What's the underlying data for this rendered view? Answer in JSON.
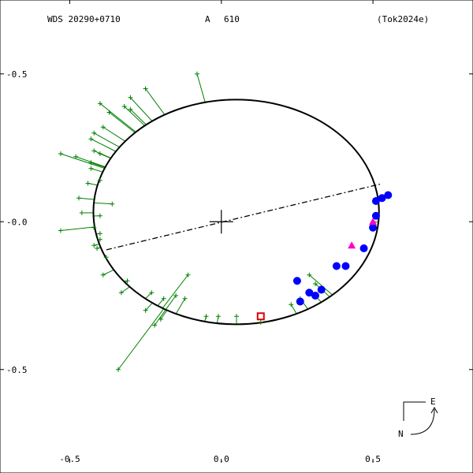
{
  "header": {
    "left": "WDS 20290+0710",
    "center_a": "A",
    "center_b": "610",
    "right": "(Tok2024e)"
  },
  "compass": {
    "east_label": "E",
    "north_label": "N"
  },
  "colors": {
    "orbit": "#000000",
    "residual": "#008000",
    "observation_blue": "#0000ff",
    "observation_magenta": "#ff00cc",
    "observation_red": "#dd0000"
  },
  "chart_data": {
    "type": "scatter",
    "title": "",
    "xlabel": "",
    "ylabel": "",
    "xlim": [
      -0.73,
      0.83
    ],
    "ylim": [
      0.85,
      -0.75
    ],
    "x_ticks": [
      {
        "value": -0.5,
        "label": "-0.5"
      },
      {
        "value": 0.0,
        "label": "0.0"
      },
      {
        "value": 0.5,
        "label": "0.5"
      }
    ],
    "y_ticks": [
      {
        "value": -0.5,
        "label": "-0.5"
      },
      {
        "value": 0.0,
        "label": "-0.0"
      },
      {
        "value": 0.5,
        "label": "-0.5"
      }
    ],
    "grid": false,
    "orbit_ellipse": {
      "cx": 0.049,
      "cy": -0.033,
      "rx": 0.471,
      "ry": 0.38,
      "rotation_deg": 0
    },
    "line_of_nodes": [
      [
        -0.379,
        0.095
      ],
      [
        0.523,
        -0.127
      ]
    ],
    "primary": [
      0.0,
      0.0
    ],
    "series": [
      {
        "marker": "plus",
        "color": "#008000",
        "points": [
          [
            -0.08,
            -0.5
          ],
          [
            -0.25,
            -0.45
          ],
          [
            -0.3,
            -0.42
          ],
          [
            -0.3,
            -0.38
          ],
          [
            -0.32,
            -0.39
          ],
          [
            -0.4,
            -0.4
          ],
          [
            -0.37,
            -0.37
          ],
          [
            -0.39,
            -0.32
          ],
          [
            -0.42,
            -0.3
          ],
          [
            -0.43,
            -0.28
          ],
          [
            -0.42,
            -0.24
          ],
          [
            -0.4,
            -0.23
          ],
          [
            -0.53,
            -0.23
          ],
          [
            -0.48,
            -0.22
          ],
          [
            -0.43,
            -0.2
          ],
          [
            -0.43,
            -0.18
          ],
          [
            -0.4,
            -0.14
          ],
          [
            -0.44,
            -0.13
          ],
          [
            -0.47,
            -0.08
          ],
          [
            -0.36,
            -0.06
          ],
          [
            -0.46,
            -0.03
          ],
          [
            -0.53,
            0.03
          ],
          [
            -0.4,
            -0.02
          ],
          [
            -0.42,
            0.02
          ],
          [
            -0.4,
            0.04
          ],
          [
            -0.4,
            0.06
          ],
          [
            -0.42,
            0.08
          ],
          [
            -0.38,
            0.12
          ],
          [
            -0.41,
            0.09
          ],
          [
            -0.39,
            0.18
          ],
          [
            -0.33,
            0.24
          ],
          [
            -0.31,
            0.2
          ],
          [
            -0.34,
            0.5
          ],
          [
            -0.23,
            0.24
          ],
          [
            -0.25,
            0.3
          ],
          [
            -0.22,
            0.35
          ],
          [
            -0.2,
            0.33
          ],
          [
            -0.19,
            0.26
          ],
          [
            -0.15,
            0.25
          ],
          [
            -0.12,
            0.26
          ],
          [
            -0.11,
            0.18
          ],
          [
            -0.05,
            0.32
          ],
          [
            -0.01,
            0.32
          ],
          [
            0.05,
            0.32
          ],
          [
            0.13,
            0.34
          ],
          [
            0.23,
            0.28
          ],
          [
            0.26,
            0.26
          ],
          [
            0.3,
            0.24
          ],
          [
            0.31,
            0.21
          ],
          [
            0.29,
            0.18
          ],
          [
            0.5,
            0.0
          ]
        ]
      },
      {
        "marker": "circle",
        "color": "#0000ff",
        "points": [
          [
            0.55,
            -0.09
          ],
          [
            0.53,
            -0.08
          ],
          [
            0.51,
            -0.07
          ],
          [
            0.51,
            -0.02
          ],
          [
            0.5,
            0.02
          ],
          [
            0.47,
            0.09
          ],
          [
            0.41,
            0.15
          ],
          [
            0.38,
            0.15
          ],
          [
            0.33,
            0.23
          ],
          [
            0.31,
            0.25
          ],
          [
            0.29,
            0.24
          ],
          [
            0.26,
            0.27
          ],
          [
            0.25,
            0.2
          ]
        ]
      },
      {
        "marker": "triangle",
        "color": "#ff00cc",
        "points": [
          [
            0.43,
            0.08
          ],
          [
            0.5,
            0.0
          ]
        ]
      },
      {
        "marker": "square",
        "color": "#dd0000",
        "points": [
          [
            0.13,
            0.32
          ]
        ]
      }
    ]
  }
}
